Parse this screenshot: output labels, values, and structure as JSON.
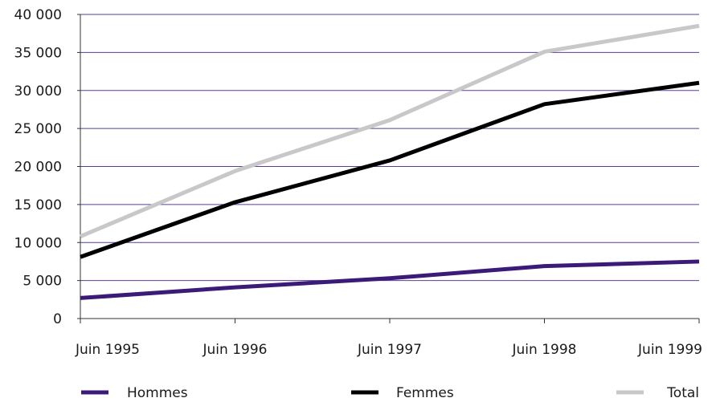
{
  "chart_data": {
    "type": "line",
    "title": "",
    "xlabel": "",
    "ylabel": "",
    "categories": [
      "Juin 1995",
      "Juin 1996",
      "Juin 1997",
      "Juin 1998",
      "Juin 1999"
    ],
    "x_positions": [
      1995,
      1996,
      1997,
      1998,
      1999
    ],
    "ylim": [
      0,
      40000
    ],
    "y_ticks": [
      0,
      5000,
      10000,
      15000,
      20000,
      25000,
      30000,
      35000,
      40000
    ],
    "y_tick_labels": [
      "0",
      "5 000",
      "10 000",
      "15 000",
      "20 000",
      "25 000",
      "30 000",
      "35 000",
      "40 000"
    ],
    "grid": true,
    "legend_position": "bottom",
    "series": [
      {
        "name": "Hommes",
        "color": "#3b1a78",
        "values": [
          2700,
          4100,
          5300,
          6900,
          7500
        ]
      },
      {
        "name": "Femmes",
        "color": "#000000",
        "values": [
          8100,
          15300,
          20800,
          28200,
          31000
        ]
      },
      {
        "name": "Total",
        "color": "#c8c8c8",
        "values": [
          10800,
          19400,
          26100,
          35100,
          38500
        ]
      }
    ]
  }
}
